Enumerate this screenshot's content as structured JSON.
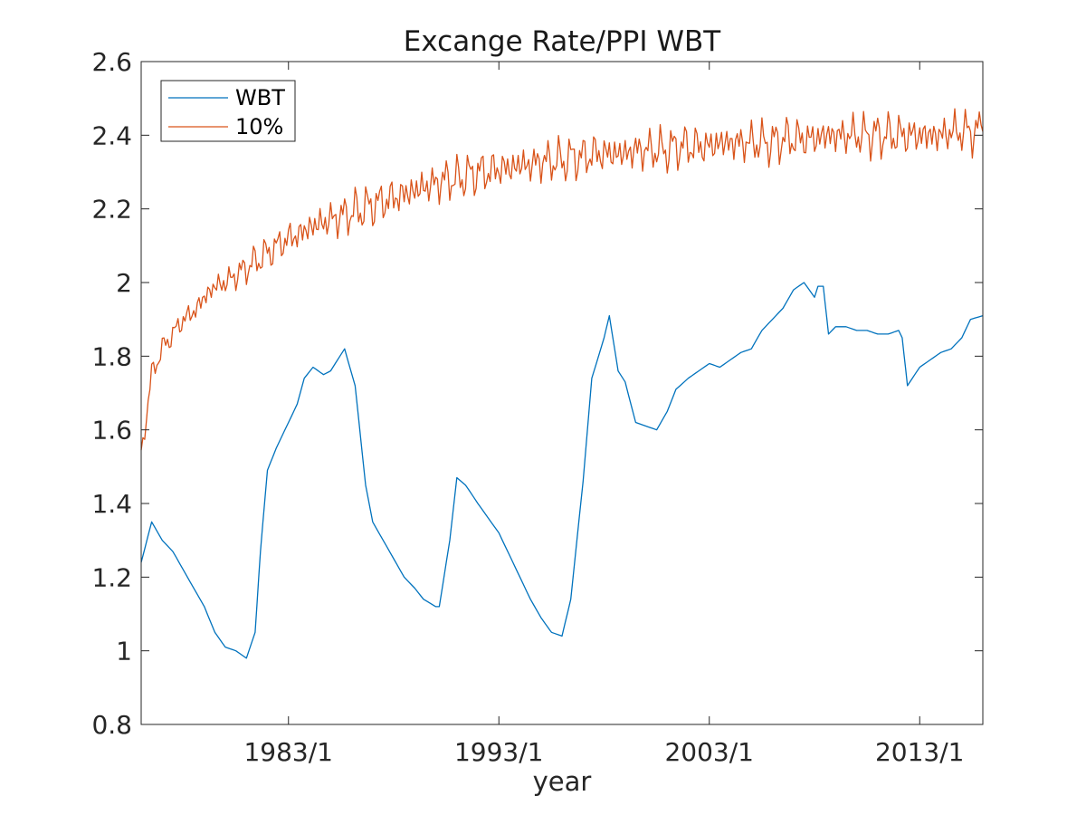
{
  "chart_data": {
    "type": "line",
    "title": "Excange Rate/PPI WBT",
    "xlabel": "year",
    "ylabel": "",
    "xlim": [
      "1976/1",
      "2016/1"
    ],
    "ylim": [
      0.8,
      2.6
    ],
    "xticks": [
      "1983/1",
      "1993/1",
      "2003/1",
      "2013/1"
    ],
    "yticks": [
      "0.8",
      "1",
      "1.2",
      "1.4",
      "1.6",
      "1.8",
      "2",
      "2.2",
      "2.4",
      "2.6"
    ],
    "grid": false,
    "legend_position": "top-left",
    "series": [
      {
        "name": "WBT",
        "color": "#0072BD",
        "x": [
          "1976/1",
          "1976/7",
          "1977/1",
          "1977/7",
          "1978/1",
          "1979/1",
          "1979/7",
          "1980/1",
          "1980/7",
          "1981/1",
          "1981/6",
          "1981/9",
          "1982/1",
          "1982/6",
          "1983/1",
          "1983/6",
          "1983/10",
          "1984/3",
          "1984/9",
          "1985/1",
          "1985/9",
          "1986/3",
          "1986/9",
          "1987/1",
          "1987/7",
          "1988/1",
          "1988/7",
          "1989/1",
          "1989/6",
          "1990/1",
          "1990/3",
          "1990/9",
          "1991/1",
          "1991/6",
          "1992/1",
          "1992/7",
          "1993/1",
          "1993/7",
          "1994/1",
          "1994/7",
          "1995/1",
          "1995/4",
          "1995/7",
          "1996/1",
          "1996/6",
          "1997/1",
          "1997/6",
          "1998/1",
          "1998/4",
          "1998/9",
          "1999/1",
          "1999/7",
          "2000/1",
          "2000/7",
          "2001/1",
          "2001/6",
          "2002/1",
          "2002/7",
          "2003/1",
          "2003/7",
          "2004/1",
          "2004/7",
          "2005/1",
          "2005/7",
          "2006/1",
          "2006/7",
          "2007/1",
          "2007/7",
          "2008/1",
          "2008/3",
          "2008/6",
          "2008/9",
          "2009/1",
          "2009/7",
          "2010/1",
          "2010/7",
          "2011/1",
          "2011/7",
          "2012/1",
          "2012/3",
          "2012/6",
          "2013/1",
          "2013/7",
          "2014/1",
          "2014/7",
          "2015/1",
          "2015/6",
          "2016/1"
        ],
        "values": [
          1.24,
          1.35,
          1.3,
          1.27,
          1.22,
          1.12,
          1.05,
          1.01,
          1.0,
          0.98,
          1.05,
          1.27,
          1.49,
          1.55,
          1.62,
          1.67,
          1.74,
          1.77,
          1.75,
          1.76,
          1.82,
          1.72,
          1.45,
          1.35,
          1.3,
          1.25,
          1.2,
          1.17,
          1.14,
          1.12,
          1.12,
          1.3,
          1.47,
          1.45,
          1.4,
          1.36,
          1.32,
          1.26,
          1.2,
          1.14,
          1.09,
          1.07,
          1.05,
          1.04,
          1.14,
          1.46,
          1.74,
          1.85,
          1.91,
          1.76,
          1.73,
          1.62,
          1.61,
          1.6,
          1.65,
          1.71,
          1.74,
          1.76,
          1.78,
          1.77,
          1.79,
          1.81,
          1.82,
          1.87,
          1.9,
          1.93,
          1.98,
          2.0,
          1.96,
          1.99,
          1.99,
          1.86,
          1.88,
          1.88,
          1.87,
          1.87,
          1.86,
          1.86,
          1.87,
          1.85,
          1.72,
          1.77,
          1.79,
          1.81,
          1.82,
          1.85,
          1.9,
          1.91
        ]
      },
      {
        "name": "10%",
        "color": "#D95319",
        "x": [
          "1976/1",
          "1976/7",
          "1977/1",
          "1977/7",
          "1978/1",
          "1978/7",
          "1979/1",
          "1979/7",
          "1980/1",
          "1980/7",
          "1981/1",
          "1981/7",
          "1982/1",
          "1982/7",
          "1983/1",
          "1983/7",
          "1984/1",
          "1984/7",
          "1985/1",
          "1985/7",
          "1986/1",
          "1986/7",
          "1987/1",
          "1987/7",
          "1988/1",
          "1988/7",
          "1989/1",
          "1989/7",
          "1990/1",
          "1990/7",
          "1991/1",
          "1991/7",
          "1992/1",
          "1992/7",
          "1993/1",
          "1993/7",
          "1994/1",
          "1994/7",
          "1995/1",
          "1995/7",
          "1996/1",
          "1996/7",
          "1997/1",
          "1997/7",
          "1998/1",
          "1998/7",
          "1999/1",
          "1999/7",
          "2000/1",
          "2000/7",
          "2001/1",
          "2001/7",
          "2002/1",
          "2002/7",
          "2003/1",
          "2003/7",
          "2004/1",
          "2004/7",
          "2005/1",
          "2005/7",
          "2006/1",
          "2006/7",
          "2007/1",
          "2007/7",
          "2008/1",
          "2008/7",
          "2009/1",
          "2009/7",
          "2010/1",
          "2010/7",
          "2011/1",
          "2011/7",
          "2012/1",
          "2012/7",
          "2013/1",
          "2013/7",
          "2014/1",
          "2014/7",
          "2015/1",
          "2015/7",
          "2016/1"
        ],
        "values": [
          1.53,
          1.75,
          1.82,
          1.86,
          1.9,
          1.92,
          1.96,
          1.99,
          2.0,
          2.02,
          2.04,
          2.06,
          2.08,
          2.1,
          2.12,
          2.13,
          2.15,
          2.16,
          2.17,
          2.18,
          2.19,
          2.2,
          2.21,
          2.22,
          2.23,
          2.24,
          2.25,
          2.26,
          2.27,
          2.28,
          2.28,
          2.29,
          2.3,
          2.3,
          2.31,
          2.31,
          2.32,
          2.32,
          2.33,
          2.33,
          2.33,
          2.34,
          2.34,
          2.35,
          2.35,
          2.35,
          2.35,
          2.36,
          2.36,
          2.36,
          2.36,
          2.37,
          2.37,
          2.37,
          2.37,
          2.38,
          2.38,
          2.38,
          2.38,
          2.38,
          2.38,
          2.39,
          2.39,
          2.39,
          2.39,
          2.4,
          2.4,
          2.4,
          2.4,
          2.4,
          2.4,
          2.4,
          2.4,
          2.4,
          2.4,
          2.4,
          2.4,
          2.41,
          2.41,
          2.41,
          2.41
        ]
      }
    ]
  }
}
